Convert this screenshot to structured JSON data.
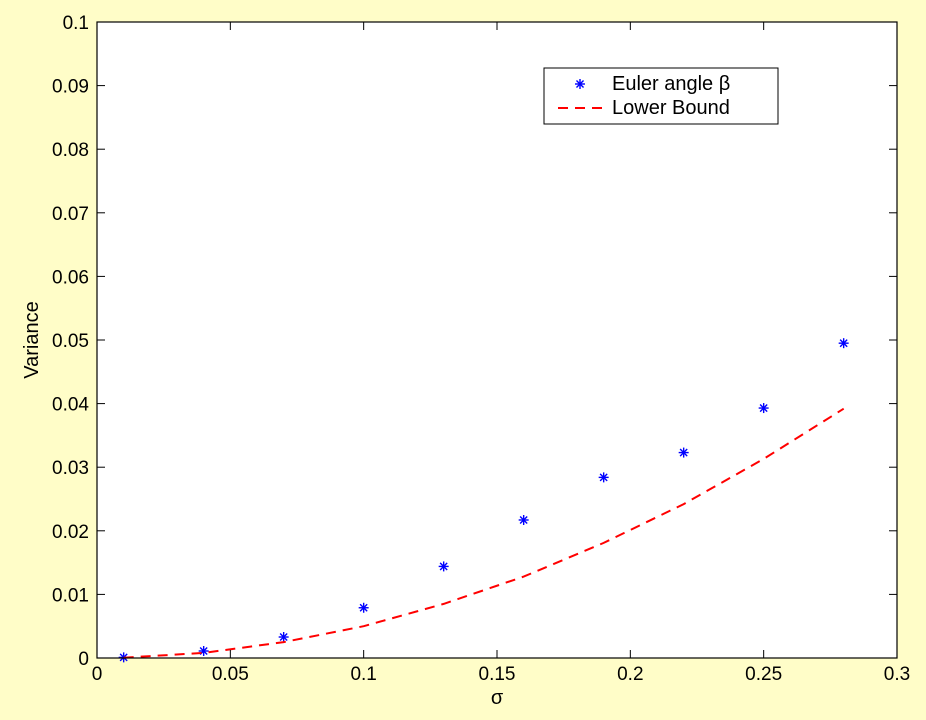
{
  "colors": {
    "figure_background": "#fffdc8",
    "axes_background": "#ffffff",
    "marker_color": "#0000ff",
    "line_color": "#ff0000",
    "axis_color": "#000000"
  },
  "chart_data": {
    "type": "scatter",
    "title": "",
    "xlabel": "σ",
    "ylabel": "Variance",
    "xlim": [
      0,
      0.3
    ],
    "ylim": [
      0,
      0.1
    ],
    "grid": false,
    "legend_position": "top-right",
    "x_ticks": [
      0,
      0.05,
      0.1,
      0.15,
      0.2,
      0.25,
      0.3
    ],
    "x_tick_labels": [
      "0",
      "0.05",
      "0.1",
      "0.15",
      "0.2",
      "0.25",
      "0.3"
    ],
    "y_ticks": [
      0,
      0.01,
      0.02,
      0.03,
      0.04,
      0.05,
      0.06,
      0.07,
      0.08,
      0.09,
      0.1
    ],
    "y_tick_labels": [
      "0",
      "0.01",
      "0.02",
      "0.03",
      "0.04",
      "0.05",
      "0.06",
      "0.07",
      "0.08",
      "0.09",
      "0.1"
    ],
    "series": [
      {
        "name": "Euler angle β",
        "style": "markers",
        "marker": "asterisk",
        "color": "#0000ff",
        "x": [
          0.01,
          0.04,
          0.07,
          0.1,
          0.13,
          0.16,
          0.19,
          0.22,
          0.25,
          0.28
        ],
        "y": [
          0.0001,
          0.0011,
          0.0033,
          0.0079,
          0.0144,
          0.0217,
          0.0284,
          0.0323,
          0.0393,
          0.0495
        ]
      },
      {
        "name": "Lower Bound",
        "style": "dashed-line",
        "color": "#ff0000",
        "x": [
          0.01,
          0.04,
          0.07,
          0.1,
          0.13,
          0.16,
          0.19,
          0.22,
          0.25,
          0.28
        ],
        "y": [
          5e-05,
          0.0008,
          0.0025,
          0.005,
          0.0085,
          0.0128,
          0.0181,
          0.0242,
          0.0313,
          0.0392
        ]
      }
    ]
  }
}
